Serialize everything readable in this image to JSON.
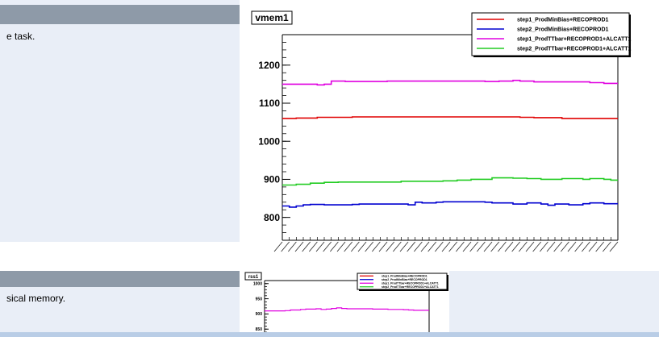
{
  "section1": {
    "description": "e task.",
    "chart_data": {
      "type": "line",
      "title": "vmem1",
      "xlabel": "",
      "ylabel": "",
      "ylim": [
        740,
        1280
      ],
      "yticks": [
        800,
        900,
        1000,
        1100,
        1200
      ],
      "legend_position": "top-right",
      "series": [
        {
          "name": "step1_ProdMinBias+RECOPROD1",
          "color": "#e00000",
          "values": [
            1060,
            1060,
            1061,
            1061,
            1061,
            1063,
            1063,
            1063,
            1063,
            1063,
            1064,
            1064,
            1064,
            1064,
            1064,
            1064,
            1064,
            1064,
            1064,
            1064,
            1064,
            1064,
            1064,
            1064,
            1064,
            1064,
            1064,
            1064,
            1064,
            1064,
            1064,
            1064,
            1064,
            1064,
            1063,
            1063,
            1062,
            1062,
            1062,
            1062,
            1060,
            1060,
            1060,
            1060,
            1060,
            1060,
            1060,
            1060
          ]
        },
        {
          "name": "step2_ProdMinBias+RECOPROD1",
          "color": "#0000d0",
          "values": [
            830,
            827,
            830,
            833,
            834,
            834,
            833,
            833,
            833,
            833,
            834,
            835,
            835,
            835,
            835,
            835,
            835,
            835,
            833,
            840,
            838,
            838,
            840,
            841,
            841,
            841,
            841,
            841,
            841,
            840,
            838,
            838,
            838,
            835,
            835,
            838,
            838,
            835,
            832,
            835,
            835,
            833,
            833,
            836,
            838,
            838,
            836,
            836
          ]
        },
        {
          "name": "step1_ProdTTbar+RECOPROD1+ALCATT1",
          "color": "#e000e0",
          "values": [
            1150,
            1150,
            1150,
            1150,
            1150,
            1148,
            1150,
            1158,
            1158,
            1157,
            1157,
            1157,
            1157,
            1157,
            1157,
            1158,
            1158,
            1158,
            1158,
            1158,
            1158,
            1158,
            1158,
            1158,
            1158,
            1158,
            1158,
            1158,
            1158,
            1157,
            1157,
            1158,
            1158,
            1160,
            1158,
            1158,
            1156,
            1156,
            1156,
            1156,
            1156,
            1156,
            1156,
            1156,
            1154,
            1154,
            1152,
            1152
          ]
        },
        {
          "name": "step2_ProdTTbar+RECOPROD1+ALCATT1",
          "color": "#22cc22",
          "values": [
            885,
            885,
            887,
            887,
            890,
            890,
            892,
            892,
            893,
            893,
            893,
            893,
            893,
            893,
            893,
            893,
            893,
            895,
            895,
            895,
            895,
            895,
            895,
            896,
            896,
            898,
            898,
            900,
            900,
            900,
            904,
            904,
            904,
            903,
            903,
            902,
            902,
            900,
            900,
            900,
            902,
            902,
            902,
            900,
            902,
            902,
            900,
            898
          ]
        }
      ]
    }
  },
  "section2": {
    "description": "sical memory.",
    "chart_data": {
      "type": "line",
      "title": "rss1",
      "xlabel": "",
      "ylabel": "",
      "ylim": [
        840,
        1010
      ],
      "yticks": [
        850,
        900,
        950,
        1000
      ],
      "legend_position": "top-right",
      "series": [
        {
          "name": "step1_ProdMinBias+RECOPROD1",
          "color": "#e00000",
          "values": []
        },
        {
          "name": "step2_ProdMinBias+RECOPROD1",
          "color": "#0000d0",
          "values": []
        },
        {
          "name": "step1_ProdTTbar+RECOPROD1+ALCATT1",
          "color": "#e000e0",
          "values": [
            910,
            910,
            910,
            910,
            911,
            913,
            913,
            915,
            916,
            916,
            917,
            915,
            916,
            918,
            920,
            918,
            917,
            917,
            917,
            917,
            917,
            916,
            916,
            916,
            915,
            915,
            915,
            914,
            913,
            912,
            912,
            912
          ]
        },
        {
          "name": "step2_ProdTTbar+RECOPROD1+ALCATT1",
          "color": "#22cc22",
          "values": []
        }
      ]
    }
  }
}
